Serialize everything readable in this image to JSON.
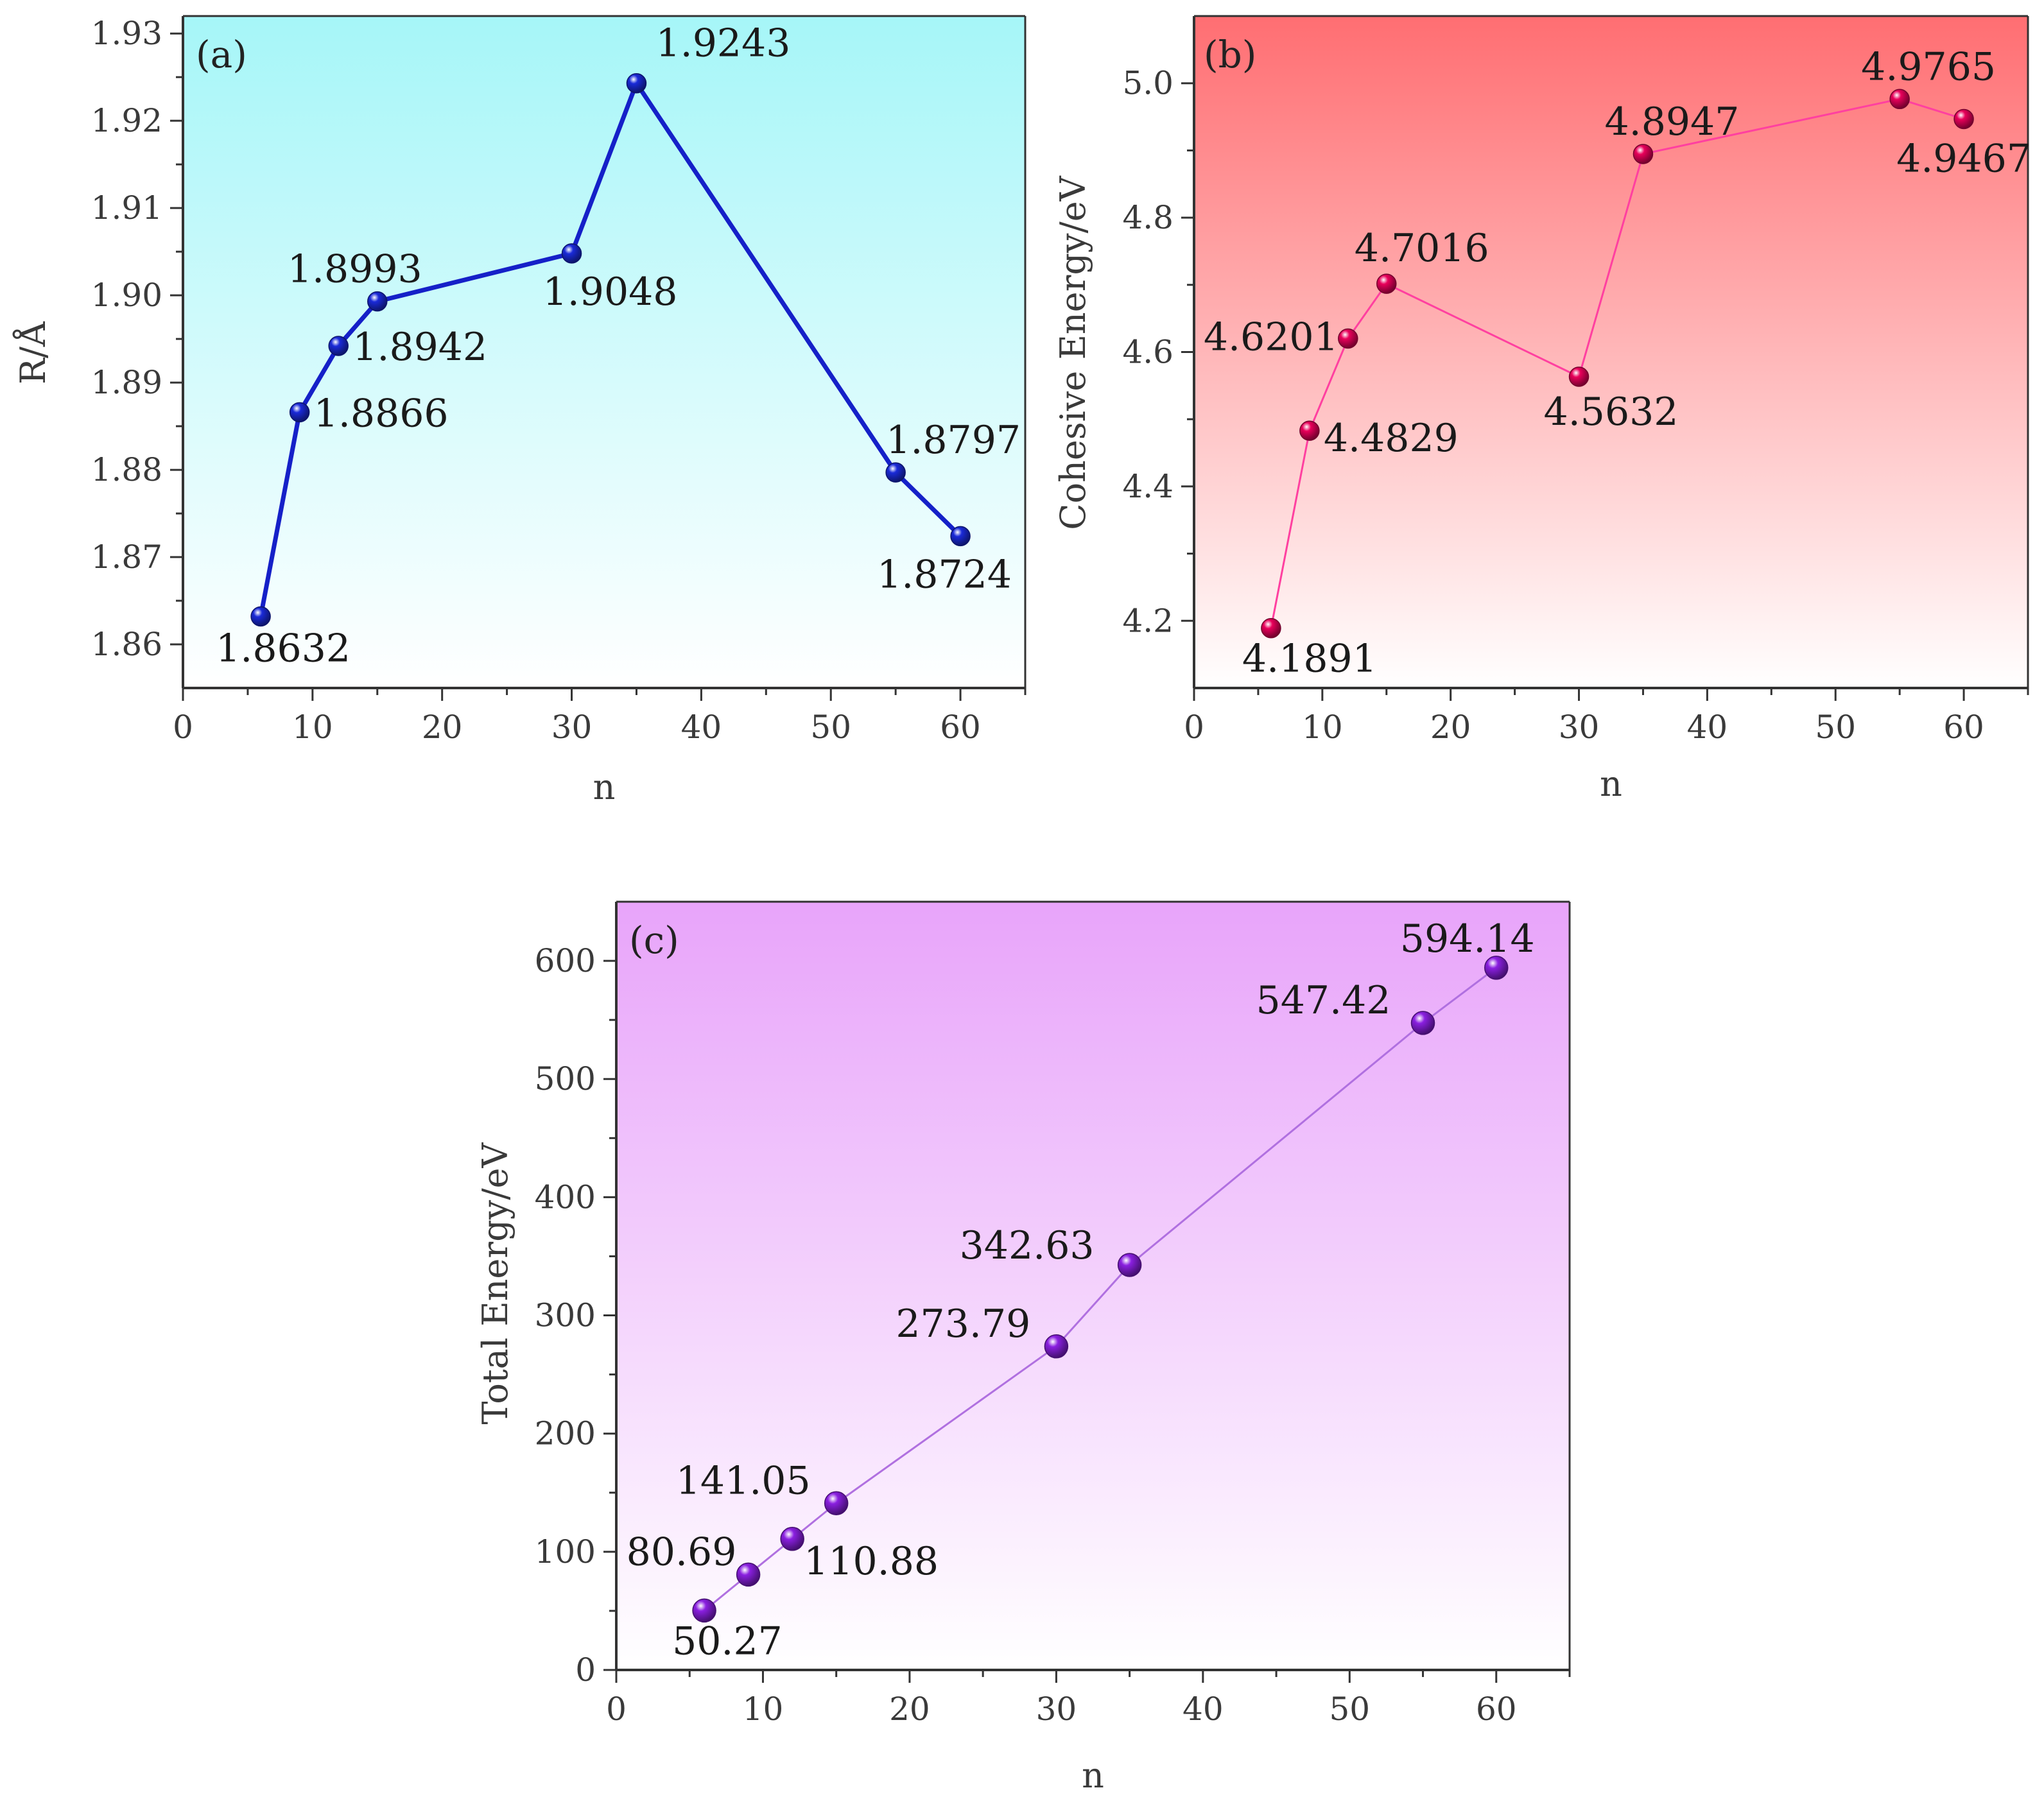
{
  "chart_data": [
    {
      "type": "line",
      "panel": "(a)",
      "xlabel": "n",
      "ylabel": "R/Å",
      "xlim": [
        0,
        65
      ],
      "ylim": [
        1.855,
        1.932
      ],
      "x_ticks": [
        0,
        10,
        20,
        30,
        40,
        50,
        60
      ],
      "y_ticks": [
        1.86,
        1.87,
        1.88,
        1.89,
        1.9,
        1.91,
        1.92,
        1.93
      ],
      "y_tick_labels": [
        "1.86",
        "1.87",
        "1.88",
        "1.89",
        "1.90",
        "1.91",
        "1.92",
        "1.93"
      ],
      "x": [
        6,
        9,
        12,
        15,
        30,
        35,
        55,
        60
      ],
      "values": [
        1.8632,
        1.8866,
        1.8942,
        1.8993,
        1.9048,
        1.9243,
        1.8797,
        1.8724
      ],
      "labels": [
        "1.8632",
        "1.8866",
        "1.8942",
        "1.8993",
        "1.9048",
        "1.9243",
        "1.8797",
        "1.8724"
      ],
      "line_color": "#1520c8",
      "marker_color": "#1a2ad8",
      "background_gradient": [
        "#a6f6f8",
        "#ffffff"
      ]
    },
    {
      "type": "line",
      "panel": "(b)",
      "xlabel": "n",
      "ylabel": "Cohesive Energy/eV",
      "xlim": [
        0,
        65
      ],
      "ylim": [
        4.1,
        5.1
      ],
      "x_ticks": [
        0,
        10,
        20,
        30,
        40,
        50,
        60
      ],
      "y_ticks": [
        4.2,
        4.4,
        4.6,
        4.8,
        5.0
      ],
      "y_tick_labels": [
        "4.2",
        "4.4",
        "4.6",
        "4.8",
        "5.0"
      ],
      "x": [
        6,
        9,
        12,
        15,
        30,
        35,
        55,
        60
      ],
      "values": [
        4.1891,
        4.4829,
        4.6201,
        4.7016,
        4.5632,
        4.8947,
        4.9765,
        4.9467
      ],
      "labels": [
        "4.1891",
        "4.4829",
        "4.6201",
        "4.7016",
        "4.5632",
        "4.8947",
        "4.9765",
        "4.9467"
      ],
      "line_color": "#ff40a0",
      "marker_color": "#e8005a",
      "background_gradient": [
        "#ff6e72",
        "#ffffff"
      ]
    },
    {
      "type": "line",
      "panel": "(c)",
      "xlabel": "n",
      "ylabel": "Total Energy/eV",
      "xlim": [
        0,
        65
      ],
      "ylim": [
        0,
        650
      ],
      "x_ticks": [
        0,
        10,
        20,
        30,
        40,
        50,
        60
      ],
      "y_ticks": [
        0,
        100,
        200,
        300,
        400,
        500,
        600
      ],
      "y_tick_labels": [
        "0",
        "100",
        "200",
        "300",
        "400",
        "500",
        "600"
      ],
      "x": [
        6,
        9,
        12,
        15,
        30,
        35,
        55,
        60
      ],
      "values": [
        50.27,
        80.69,
        110.88,
        141.05,
        273.79,
        342.63,
        547.42,
        594.14
      ],
      "labels": [
        "50.27",
        "80.69",
        "110.88",
        "141.05",
        "273.79",
        "342.63",
        "547.42",
        "594.14"
      ],
      "line_color": "#b070e0",
      "marker_color": "#8a1fe0",
      "background_gradient": [
        "#e8a4fa",
        "#ffffff"
      ]
    }
  ]
}
